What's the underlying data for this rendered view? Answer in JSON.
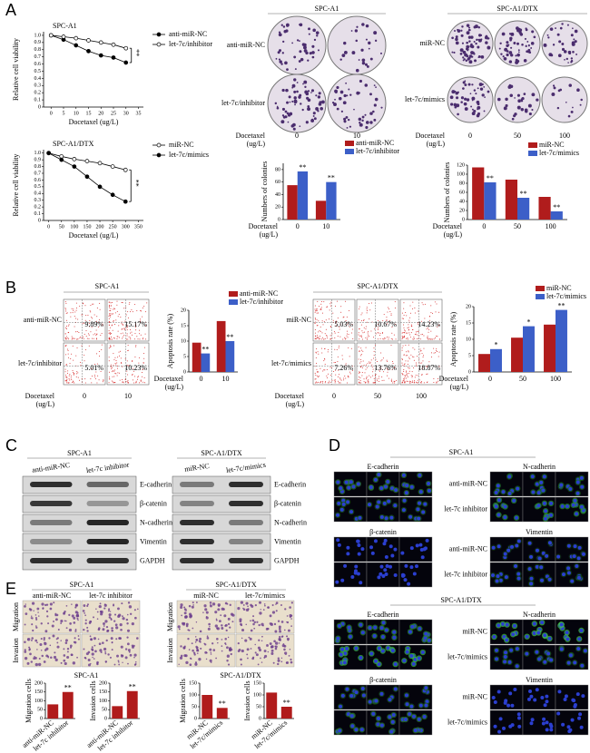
{
  "panel_a": {
    "letter": "A",
    "colony_spc": {
      "title": "SPC-A1",
      "rows": [
        "anti-miR-NC",
        "let-7c/inhibitor"
      ],
      "dose_label": [
        "Docetaxel",
        "(ug/L)"
      ],
      "doses": [
        "0",
        "10"
      ]
    },
    "colony_dtx": {
      "title": "SPC-A1/DTX",
      "rows": [
        "miR-NC",
        "let-7c/mimics"
      ],
      "dose_label": [
        "Docetaxel",
        "(ug/L)"
      ],
      "doses": [
        "0",
        "50",
        "100"
      ]
    }
  },
  "panel_b": {
    "letter": "B",
    "flow_spc": {
      "title": "SPC-A1",
      "rows": [
        "anti-miR-NC",
        "let-7c/inhibitor"
      ],
      "percents": [
        [
          "9.89%",
          "15.17%"
        ],
        [
          "5.01%",
          "10.23%"
        ]
      ],
      "dose_label": [
        "Docetaxel",
        "(ug/L)"
      ],
      "doses": [
        "0",
        "10"
      ]
    },
    "flow_dtx": {
      "title": "SPC-A1/DTX",
      "rows": [
        "miR-NC",
        "let-7c/mimics"
      ],
      "percents": [
        [
          "5.03%",
          "10.67%",
          "14.23%"
        ],
        [
          "7.26%",
          "13.76%",
          "18.87%"
        ]
      ],
      "dose_label": [
        "Docetaxel",
        "(ug/L)"
      ],
      "doses": [
        "0",
        "50",
        "100"
      ]
    }
  },
  "panel_c": {
    "letter": "C",
    "blot_spc": {
      "title": "SPC-A1",
      "columns": [
        "anti-miR-NC",
        "let-7c inhibitor"
      ],
      "rows": [
        "E-cadherin",
        "β-catenin",
        "N-cadherin",
        "Vimentin",
        "GAPDH"
      ]
    },
    "blot_dtx": {
      "title": "SPC-A1/DTX",
      "columns": [
        "miR-NC",
        "let-7c/mimics"
      ],
      "rows": [
        "E-cadherin",
        "β-catenin",
        "N-cadherin",
        "Vimentin",
        "GAPDH"
      ]
    }
  },
  "panel_d": {
    "letter": "D",
    "groups": [
      {
        "title": "SPC-A1",
        "markers": [
          "E-cadherin",
          "N-cadherin",
          "β-catenin",
          "Vimentin"
        ],
        "rows": [
          "anti-miR-NC",
          "let-7c inhibitor"
        ]
      },
      {
        "title": "SPC-A1/DTX",
        "markers": [
          "E-cadherin",
          "N-cadherin",
          "β-catenin",
          "Vimentin"
        ],
        "rows": [
          "miR-NC",
          "let-7c/mimics"
        ]
      }
    ]
  },
  "panel_e": {
    "letter": "E",
    "groups": [
      {
        "title": "SPC-A1",
        "columns": [
          "anti-miR-NC",
          "let-7c inhibitor"
        ],
        "assays": [
          "Invasion",
          "Migration"
        ],
        "chart_title": "SPC-A1"
      },
      {
        "title": "SPC-A1/DTX",
        "columns": [
          "miR-NC",
          "let-7c/mimics"
        ],
        "assays": [
          "Invasion",
          "Migration"
        ],
        "chart_title": "SPC-A1/DTX"
      }
    ]
  },
  "chart_data": [
    {
      "type": "line",
      "title": "SPC-A1",
      "xlabel": "Docetaxel (ug/L)",
      "ylabel": "Relative cell viability",
      "x": [
        0,
        5,
        10,
        15,
        20,
        25,
        30
      ],
      "xlim": [
        -3,
        37
      ],
      "xticks": [
        0,
        5,
        10,
        15,
        20,
        25,
        30,
        35
      ],
      "ylim": [
        0,
        1.05
      ],
      "yticks": [
        0,
        0.1,
        0.2,
        0.3,
        0.4,
        0.5,
        0.6,
        0.7,
        0.8,
        0.9,
        {
          "value": 1,
          "label": "1.0"
        }
      ],
      "series": [
        {
          "name": "anti-miR-NC",
          "color": "#000000",
          "marker": "filled",
          "values": [
            1.0,
            0.94,
            0.86,
            0.78,
            0.72,
            0.69,
            0.62
          ]
        },
        {
          "name": "let-7c/inhibitor",
          "color": "#000000",
          "marker": "open",
          "values": [
            1.0,
            0.98,
            0.96,
            0.93,
            0.9,
            0.87,
            0.82
          ]
        }
      ],
      "annotation": "**"
    },
    {
      "type": "line",
      "title": "SPC-A1/DTX",
      "xlabel": "Docetaxel (ug/L)",
      "ylabel": "Relative cell viability",
      "x": [
        0,
        50,
        100,
        150,
        200,
        250,
        300
      ],
      "xlim": [
        -20,
        370
      ],
      "xticks": [
        0,
        50,
        100,
        150,
        200,
        250,
        300,
        350
      ],
      "ylim": [
        0,
        1.05
      ],
      "yticks": [
        0,
        0.1,
        0.2,
        0.3,
        0.4,
        0.5,
        0.6,
        0.7,
        0.8,
        0.9,
        {
          "value": 1,
          "label": "1.0"
        }
      ],
      "series": [
        {
          "name": "miR-NC",
          "color": "#000000",
          "marker": "open",
          "values": [
            1.0,
            0.95,
            0.91,
            0.88,
            0.85,
            0.8,
            0.75
          ]
        },
        {
          "name": "let-7c/mimics",
          "color": "#000000",
          "marker": "filled",
          "values": [
            1.0,
            0.9,
            0.8,
            0.65,
            0.5,
            0.38,
            0.28
          ]
        }
      ],
      "annotation": "**"
    },
    {
      "type": "bar",
      "ylabel": "Numbers of colonies",
      "xlabel": [
        "Docetaxel",
        "(ug/L)"
      ],
      "categories": [
        "0",
        "10"
      ],
      "ylim": [
        0,
        90
      ],
      "yticks": [
        0,
        20,
        40,
        60,
        80
      ],
      "series": [
        {
          "name": "anti-miR-NC",
          "color": "#b01c1c",
          "values": [
            55,
            30
          ]
        },
        {
          "name": "let-7c/inhibitor",
          "color": "#3c5fc8",
          "values": [
            77,
            60
          ]
        }
      ],
      "sig": [
        "**",
        "**"
      ]
    },
    {
      "type": "bar",
      "ylabel": "Numbers of colonies",
      "xlabel": [
        "Docetaxel",
        "(ug/L)"
      ],
      "categories": [
        "0",
        "50",
        "100"
      ],
      "ylim": [
        0,
        120
      ],
      "yticks": [
        0,
        20,
        40,
        60,
        80,
        100,
        120
      ],
      "series": [
        {
          "name": "miR-NC",
          "color": "#b01c1c",
          "values": [
            115,
            88,
            50
          ]
        },
        {
          "name": "let-7c/mimics",
          "color": "#3c5fc8",
          "values": [
            82,
            48,
            18
          ]
        }
      ],
      "sig": [
        "**",
        "**",
        "**"
      ]
    },
    {
      "type": "bar",
      "ylabel": "Apoptosis rate (%)",
      "xlabel": [
        "Docetaxel",
        "(ug/L)"
      ],
      "categories": [
        "0",
        "10"
      ],
      "ylim": [
        0,
        20
      ],
      "yticks": [
        0,
        5,
        10,
        15,
        20
      ],
      "series": [
        {
          "name": "anti-miR-NC",
          "color": "#b01c1c",
          "values": [
            9.5,
            16.5
          ]
        },
        {
          "name": "let-7c/inhibitor",
          "color": "#3c5fc8",
          "values": [
            6,
            10
          ]
        }
      ],
      "sig": [
        "**",
        "**"
      ]
    },
    {
      "type": "bar",
      "ylabel": "Apoptosis rate (%)",
      "xlabel": [
        "Docetaxel",
        "(ug/L)"
      ],
      "categories": [
        "0",
        "50",
        "100"
      ],
      "ylim": [
        0,
        20
      ],
      "yticks": [
        0,
        5,
        10,
        15,
        20
      ],
      "series": [
        {
          "name": "miR-NC",
          "color": "#b01c1c",
          "values": [
            5.5,
            10.5,
            14.5
          ]
        },
        {
          "name": "let-7c/mimics",
          "color": "#3c5fc8",
          "values": [
            7,
            14,
            19
          ]
        }
      ],
      "sig": [
        "*",
        "*",
        "**"
      ]
    },
    {
      "type": "bar",
      "ylabel": "Migration cells",
      "categories": [
        "anti-miR-NC",
        "let-7c inhibitor"
      ],
      "ylim": [
        0,
        200
      ],
      "yticks": [
        0,
        50,
        100,
        150,
        200
      ],
      "color": "#b01c1c",
      "values": [
        80,
        150
      ],
      "sig": [
        null,
        "**"
      ]
    },
    {
      "type": "bar",
      "ylabel": "Invasion cells",
      "categories": [
        "anti-miR-NC",
        "let-7c inhibitor"
      ],
      "ylim": [
        0,
        200
      ],
      "yticks": [
        0,
        50,
        100,
        150,
        200
      ],
      "color": "#b01c1c",
      "values": [
        70,
        155
      ],
      "sig": [
        null,
        "**"
      ]
    },
    {
      "type": "bar",
      "ylabel": "Migration cells",
      "categories": [
        "miR-NC",
        "let-7c/mimics"
      ],
      "ylim": [
        0,
        150
      ],
      "yticks": [
        0,
        50,
        100,
        150
      ],
      "color": "#b01c1c",
      "values": [
        100,
        45
      ],
      "sig": [
        null,
        "**"
      ]
    },
    {
      "type": "bar",
      "ylabel": "Invasion cells",
      "categories": [
        "miR-NC",
        "let-7c/mimics"
      ],
      "ylim": [
        0,
        150
      ],
      "yticks": [
        0,
        50,
        100,
        150
      ],
      "color": "#b01c1c",
      "values": [
        110,
        50
      ],
      "sig": [
        null,
        "**"
      ]
    }
  ]
}
